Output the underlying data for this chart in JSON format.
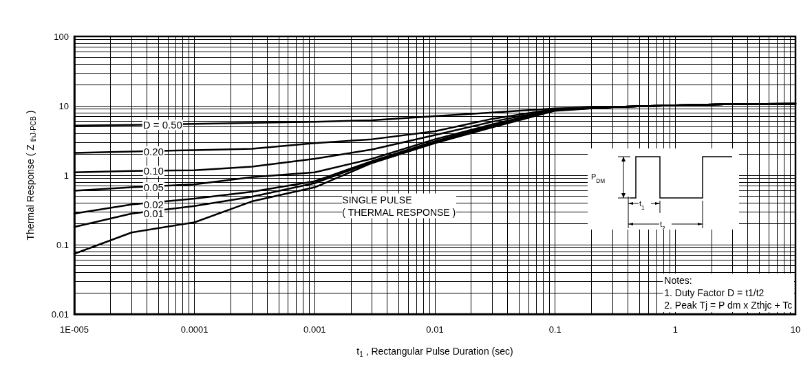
{
  "chart_data": {
    "type": "line",
    "xlabel": "t$_{1}$ , Rectangular Pulse Duration (sec)",
    "ylabel": "Thermal Response ( Z $_{thJ-PCB}$ )",
    "x": [
      1e-05,
      3e-05,
      0.0001,
      0.0003,
      0.001,
      0.003,
      0.01,
      0.03,
      0.1,
      0.3,
      1,
      3,
      10
    ],
    "series": [
      {
        "name": "D = 0.50",
        "color": "#000000",
        "values": [
          5.2,
          5.3,
          5.5,
          5.7,
          5.9,
          6.2,
          7.1,
          8.0,
          9.2,
          9.6,
          10.2,
          10.6,
          10.7
        ]
      },
      {
        "name": "0.20",
        "color": "#000000",
        "values": [
          2.1,
          2.2,
          2.3,
          2.4,
          2.9,
          3.3,
          4.3,
          6.5,
          9.0,
          9.6,
          10.2,
          10.6,
          10.7
        ]
      },
      {
        "name": "0.10",
        "color": "#000000",
        "values": [
          1.1,
          1.15,
          1.18,
          1.33,
          1.73,
          2.35,
          3.8,
          5.9,
          8.9,
          9.6,
          10.2,
          10.6,
          10.7
        ]
      },
      {
        "name": "0.05",
        "color": "#000000",
        "values": [
          0.6,
          0.67,
          0.74,
          0.94,
          1.1,
          1.73,
          3.3,
          5.4,
          8.8,
          9.6,
          10.2,
          10.6,
          10.7
        ]
      },
      {
        "name": "0.02",
        "color": "#000000",
        "values": [
          0.28,
          0.38,
          0.46,
          0.58,
          0.82,
          1.6,
          3.1,
          5.3,
          8.7,
          9.6,
          10.2,
          10.6,
          10.7
        ]
      },
      {
        "name": "0.01",
        "color": "#000000",
        "values": [
          0.18,
          0.28,
          0.36,
          0.49,
          0.77,
          1.55,
          2.95,
          5.1,
          8.6,
          9.6,
          10.2,
          10.6,
          10.7
        ]
      },
      {
        "name": "SINGLE PULSE\n( THERMAL RESPONSE )",
        "color": "#000000",
        "values": [
          0.074,
          0.15,
          0.21,
          0.42,
          0.67,
          1.5,
          2.9,
          4.9,
          8.5,
          9.6,
          10.2,
          10.6,
          10.7
        ]
      }
    ],
    "xlim": [
      1e-05,
      10
    ],
    "xticks": [
      {
        "value": 1e-05,
        "label": "1E-005"
      },
      0.0001,
      0.001,
      0.01,
      0.1,
      1,
      10
    ],
    "ylim": [
      0.01,
      100
    ],
    "yticks": [
      0.01,
      0.1,
      1,
      10,
      100
    ],
    "log": "xy",
    "grid": true,
    "legend": false,
    "marker": "none",
    "line_style": "solid",
    "annotations": [
      "P$_{DM}$",
      "t$_{1}$",
      "t$_{2}$",
      "Notes:",
      "1. Duty Factor D = t1/t2",
      "2. Peak Tj = P dm x Zthjc + Tc"
    ]
  }
}
